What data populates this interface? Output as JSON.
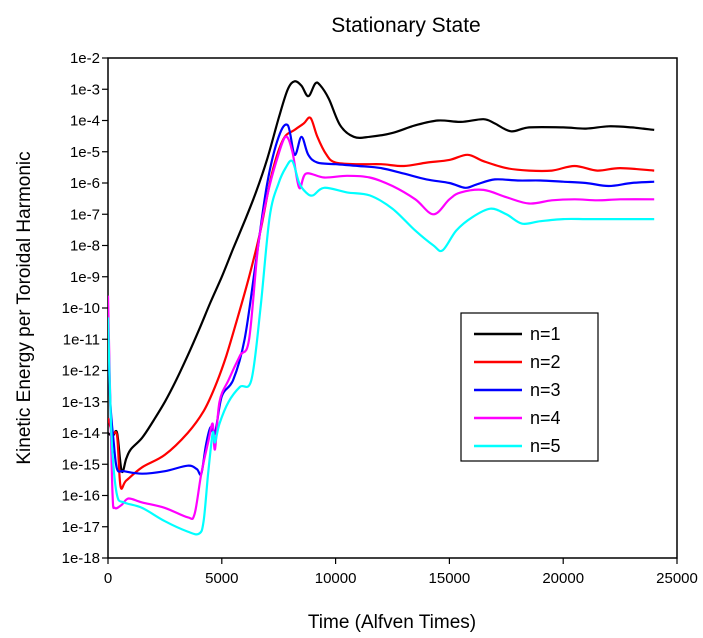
{
  "chart_data": {
    "type": "line",
    "title": "Stationary State",
    "xlabel": "Time (Alfven Times)",
    "ylabel": "Kinetic Energy per Toroidal Harmonic",
    "xlim": [
      0,
      25000
    ],
    "xticks": [
      0,
      5000,
      10000,
      15000,
      20000,
      25000
    ],
    "x_tick_labels": [
      "0",
      "5000",
      "10000",
      "15000",
      "20000",
      "25000"
    ],
    "y_scale": "log",
    "ylim_exponent": [
      -18,
      -2
    ],
    "y_tick_labels": [
      "1e-18",
      "1e-17",
      "1e-16",
      "1e-15",
      "1e-14",
      "1e-13",
      "1e-12",
      "1e-11",
      "1e-10",
      "1e-9",
      "1e-8",
      "1e-7",
      "1e-6",
      "1e-5",
      "1e-4",
      "1e-3",
      "1e-2"
    ],
    "grid": false,
    "legend_position": "lower-right",
    "series": [
      {
        "name": "n=1",
        "color": "#000000",
        "points": [
          [
            0,
            "1e-14"
          ],
          [
            200,
            "8e-15"
          ],
          [
            400,
            "1e-14"
          ],
          [
            600,
            "6e-16"
          ],
          [
            800,
            "1.5e-15"
          ],
          [
            1000,
            "3e-15"
          ],
          [
            1500,
            "7e-15"
          ],
          [
            2000,
            "2.5e-14"
          ],
          [
            2500,
            "1e-13"
          ],
          [
            3000,
            "5e-13"
          ],
          [
            3500,
            "3e-12"
          ],
          [
            4000,
            "2e-11"
          ],
          [
            4500,
            "1.5e-10"
          ],
          [
            5000,
            "1e-9"
          ],
          [
            5500,
            "8e-9"
          ],
          [
            6000,
            "6e-8"
          ],
          [
            6500,
            "5e-7"
          ],
          [
            7000,
            "6e-6"
          ],
          [
            7500,
            "1.2e-4"
          ],
          [
            7900,
            "1e-3"
          ],
          [
            8200,
            "1.8e-3"
          ],
          [
            8500,
            "1.3e-3"
          ],
          [
            8800,
            "6e-4"
          ],
          [
            9100,
            "1.5e-3"
          ],
          [
            9300,
            "1.4e-3"
          ],
          [
            9700,
            "5e-4"
          ],
          [
            10200,
            "7e-5"
          ],
          [
            10800,
            "3e-5"
          ],
          [
            11500,
            "3e-5"
          ],
          [
            12500,
            "4e-5"
          ],
          [
            13500,
            "7e-5"
          ],
          [
            14500,
            "1e-4"
          ],
          [
            15500,
            "9e-5"
          ],
          [
            16500,
            "1.1e-4"
          ],
          [
            17000,
            "8e-5"
          ],
          [
            17700,
            "4.5e-5"
          ],
          [
            18500,
            "6e-5"
          ],
          [
            20000,
            "6e-5"
          ],
          [
            21000,
            "5.5e-5"
          ],
          [
            22000,
            "6.5e-5"
          ],
          [
            23000,
            "6e-5"
          ],
          [
            24000,
            "5e-5"
          ]
        ]
      },
      {
        "name": "n=2",
        "color": "#ff0000",
        "points": [
          [
            0,
            "3e-14"
          ],
          [
            200,
            "1e-14"
          ],
          [
            400,
            "8e-15"
          ],
          [
            550,
            "2e-16"
          ],
          [
            800,
            "3e-16"
          ],
          [
            1500,
            "8e-16"
          ],
          [
            2500,
            "2e-15"
          ],
          [
            3500,
            "1e-14"
          ],
          [
            4200,
            "5e-14"
          ],
          [
            4700,
            "3e-13"
          ],
          [
            5200,
            "3e-12"
          ],
          [
            5700,
            "5e-11"
          ],
          [
            6200,
            "1e-9"
          ],
          [
            6700,
            "3e-8"
          ],
          [
            7200,
            "2e-6"
          ],
          [
            7700,
            "2.5e-5"
          ],
          [
            8200,
            "5e-5"
          ],
          [
            8600,
            "8e-5"
          ],
          [
            8900,
            "1.2e-4"
          ],
          [
            9200,
            "3e-5"
          ],
          [
            9600,
            "8e-6"
          ],
          [
            10000,
            "4.5e-6"
          ],
          [
            11000,
            "4e-6"
          ],
          [
            12000,
            "4e-6"
          ],
          [
            13000,
            "3.5e-6"
          ],
          [
            14000,
            "4.5e-6"
          ],
          [
            15000,
            "5.5e-6"
          ],
          [
            15800,
            "8e-6"
          ],
          [
            16500,
            "5e-6"
          ],
          [
            17500,
            "3e-6"
          ],
          [
            18500,
            "2.5e-6"
          ],
          [
            19500,
            "2.5e-6"
          ],
          [
            20500,
            "3.5e-6"
          ],
          [
            21500,
            "2.5e-6"
          ],
          [
            22500,
            "3e-6"
          ],
          [
            24000,
            "2.5e-6"
          ]
        ]
      },
      {
        "name": "n=3",
        "color": "#0000ff",
        "points": [
          [
            0,
            "2e-11"
          ],
          [
            100,
            "1e-13"
          ],
          [
            250,
            "5e-15"
          ],
          [
            400,
            "7e-16"
          ],
          [
            700,
            "6e-16"
          ],
          [
            1500,
            "5e-16"
          ],
          [
            2500,
            "6e-16"
          ],
          [
            3500,
            "9e-16"
          ],
          [
            3900,
            "7e-16"
          ],
          [
            4100,
            "5e-16"
          ],
          [
            4300,
            "4e-15"
          ],
          [
            4500,
            "1.5e-14"
          ],
          [
            4700,
            "1e-14"
          ],
          [
            5000,
            "1.5e-13"
          ],
          [
            5500,
            "5e-13"
          ],
          [
            6000,
            "1e-11"
          ],
          [
            6500,
            "3e-9"
          ],
          [
            7000,
            "1e-6"
          ],
          [
            7500,
            "3e-5"
          ],
          [
            7900,
            "7e-5"
          ],
          [
            8200,
            "8e-6"
          ],
          [
            8500,
            "3e-5"
          ],
          [
            8800,
            "8e-6"
          ],
          [
            9200,
            "4.5e-6"
          ],
          [
            10000,
            "4e-6"
          ],
          [
            11000,
            "3.5e-6"
          ],
          [
            12000,
            "3e-6"
          ],
          [
            13000,
            "2e-6"
          ],
          [
            14000,
            "1.3e-6"
          ],
          [
            15000,
            "1e-6"
          ],
          [
            15700,
            "7e-7"
          ],
          [
            16200,
            "9e-7"
          ],
          [
            17000,
            "1.3e-6"
          ],
          [
            18000,
            "1.2e-6"
          ],
          [
            19000,
            "1.2e-6"
          ],
          [
            20000,
            "1.1e-6"
          ],
          [
            21000,
            "1e-6"
          ],
          [
            22000,
            "8e-7"
          ],
          [
            23000,
            "1e-6"
          ],
          [
            24000,
            "1.1e-6"
          ]
        ]
      },
      {
        "name": "n=4",
        "color": "#ff00ff",
        "points": [
          [
            0,
            "2.5e-10"
          ],
          [
            100,
            "1e-13"
          ],
          [
            200,
            "1e-16"
          ],
          [
            300,
            "4e-17"
          ],
          [
            600,
            "5e-17"
          ],
          [
            900,
            "8e-17"
          ],
          [
            1500,
            "6e-17"
          ],
          [
            2500,
            "4e-17"
          ],
          [
            3500,
            "2e-17"
          ],
          [
            3800,
            "2.5e-17"
          ],
          [
            4100,
            "5e-16"
          ],
          [
            4400,
            "5e-15"
          ],
          [
            4600,
            "2e-14"
          ],
          [
            4700,
            "3e-15"
          ],
          [
            4900,
            "1e-13"
          ],
          [
            5300,
            "5e-13"
          ],
          [
            5800,
            "3e-12"
          ],
          [
            6200,
            "1e-11"
          ],
          [
            6600,
            "1e-8"
          ],
          [
            7000,
            "4e-7"
          ],
          [
            7400,
            "5e-6"
          ],
          [
            7800,
            "3e-5"
          ],
          [
            8100,
            "1e-5"
          ],
          [
            8400,
            "7e-7"
          ],
          [
            8700,
            "2e-6"
          ],
          [
            9500,
            "1.5e-6"
          ],
          [
            10500,
            "1.7e-6"
          ],
          [
            11500,
            "1.5e-6"
          ],
          [
            12500,
            "8e-7"
          ],
          [
            13500,
            "3e-7"
          ],
          [
            14300,
            "1e-7"
          ],
          [
            15000,
            "3e-7"
          ],
          [
            15500,
            "5e-7"
          ],
          [
            16500,
            "6e-7"
          ],
          [
            17500,
            "3.5e-7"
          ],
          [
            18500,
            "2.2e-7"
          ],
          [
            19500,
            "2.8e-7"
          ],
          [
            20500,
            "3e-7"
          ],
          [
            21500,
            "2.8e-7"
          ],
          [
            22500,
            "3e-7"
          ],
          [
            24000,
            "3e-7"
          ]
        ]
      },
      {
        "name": "n=5",
        "color": "#00ffff",
        "points": [
          [
            0,
            "5e-11"
          ],
          [
            100,
            "1e-13"
          ],
          [
            200,
            "2e-15"
          ],
          [
            400,
            "1e-16"
          ],
          [
            700,
            "6e-17"
          ],
          [
            1500,
            "4e-17"
          ],
          [
            2500,
            "1.5e-17"
          ],
          [
            3500,
            "7e-18"
          ],
          [
            4000,
            "6e-18"
          ],
          [
            4200,
            "1.5e-17"
          ],
          [
            4400,
            "5e-16"
          ],
          [
            4600,
            "1e-14"
          ],
          [
            4700,
            "5e-15"
          ],
          [
            4900,
            "2e-14"
          ],
          [
            5300,
            "1e-13"
          ],
          [
            5800,
            "3e-13"
          ],
          [
            6300,
            "5e-13"
          ],
          [
            6700,
            "1e-10"
          ],
          [
            7100,
            "8e-8"
          ],
          [
            7500,
            "1e-6"
          ],
          [
            7800,
            "3e-6"
          ],
          [
            8100,
            "5e-6"
          ],
          [
            8400,
            "1e-6"
          ],
          [
            8700,
            "5e-7"
          ],
          [
            9000,
            "4e-7"
          ],
          [
            9500,
            "7e-7"
          ],
          [
            10500,
            "5e-7"
          ],
          [
            11500,
            "4e-7"
          ],
          [
            12500,
            "1.5e-7"
          ],
          [
            13500,
            "3e-8"
          ],
          [
            14300,
            "1e-8"
          ],
          [
            14700,
            "7e-9"
          ],
          [
            15300,
            "3e-8"
          ],
          [
            16000,
            "8e-8"
          ],
          [
            16800,
            "1.5e-7"
          ],
          [
            17500,
            "1e-7"
          ],
          [
            18200,
            "5e-8"
          ],
          [
            19000,
            "6e-8"
          ],
          [
            20000,
            "7e-8"
          ],
          [
            21000,
            "7e-8"
          ],
          [
            22000,
            "7e-8"
          ],
          [
            24000,
            "7e-8"
          ]
        ]
      }
    ]
  }
}
